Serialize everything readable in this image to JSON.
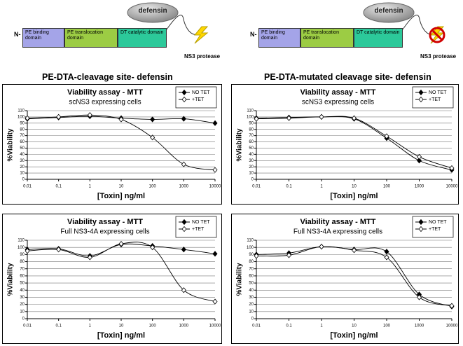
{
  "diagrams": [
    {
      "n_label": "N-",
      "domains": [
        "PE binding domain",
        "PE translocation domain",
        "DT catalytic domain"
      ],
      "defensin": "defensin",
      "protease": "NS3 protease",
      "caption": "PE-DTA-cleavage site- defensin"
    },
    {
      "n_label": "N-",
      "domains": [
        "PE binding domain",
        "PE translocation domain",
        "DT catalytic domain"
      ],
      "defensin": "defensin",
      "protease": "NS3 protease",
      "caption": "PE-DTA-mutated cleavage site- defensin"
    }
  ],
  "chart_data": [
    {
      "type": "line",
      "title": "Viability assay - MTT",
      "subtitle": "scNS3 expressing cells",
      "x_label": "[Toxin] ng/ml",
      "y_label": "%Viability",
      "x": [
        0.01,
        0.1,
        1,
        10,
        100,
        1000,
        10000
      ],
      "xscale": "log",
      "xlim": [
        0.01,
        10000
      ],
      "xticks": [
        0.01,
        0.1,
        1,
        10,
        100,
        1000,
        10000
      ],
      "ylim": [
        0,
        110
      ],
      "yticks": [
        0,
        10,
        20,
        30,
        40,
        50,
        60,
        70,
        80,
        90,
        100,
        110
      ],
      "grid": true,
      "legend": "upper right",
      "series": [
        {
          "name": "NO TET",
          "color": "#000000",
          "marker_fill": "#000000",
          "values": [
            97,
            99,
            101,
            98,
            96,
            97,
            90
          ]
        },
        {
          "name": "+TET",
          "color": "#000000",
          "marker_fill": "#ffffff",
          "values": [
            98,
            100,
            103,
            96,
            67,
            24,
            15
          ]
        }
      ]
    },
    {
      "type": "line",
      "title": "Viability assay - MTT",
      "subtitle": "scNS3 expressing cells",
      "x_label": "[Toxin] ng/ml",
      "y_label": "%Viability",
      "x": [
        0.01,
        0.1,
        1,
        10,
        100,
        1000,
        10000
      ],
      "xscale": "log",
      "xlim": [
        0.01,
        10000
      ],
      "xticks": [
        0.01,
        0.1,
        1,
        10,
        100,
        1000,
        10000
      ],
      "ylim": [
        0,
        110
      ],
      "yticks": [
        0,
        10,
        20,
        30,
        40,
        50,
        60,
        70,
        80,
        90,
        100,
        110
      ],
      "grid": true,
      "legend": "upper right",
      "series": [
        {
          "name": "NO TET",
          "color": "#000000",
          "marker_fill": "#000000",
          "values": [
            98,
            99,
            100,
            97,
            66,
            30,
            15
          ]
        },
        {
          "name": "+TET",
          "color": "#000000",
          "marker_fill": "#ffffff",
          "values": [
            97,
            98,
            100,
            98,
            69,
            36,
            18
          ]
        }
      ]
    },
    {
      "type": "line",
      "title": "Viability assay - MTT",
      "subtitle": "Full NS3-4A expressing cells",
      "x_label": "[Toxin] ng/ml",
      "y_label": "%Viability",
      "x": [
        0.01,
        0.1,
        1,
        10,
        100,
        1000,
        10000
      ],
      "xscale": "log",
      "xlim": [
        0.01,
        10000
      ],
      "xticks": [
        0.01,
        0.1,
        1,
        10,
        100,
        1000,
        10000
      ],
      "ylim": [
        0,
        110
      ],
      "yticks": [
        0,
        10,
        20,
        30,
        40,
        50,
        60,
        70,
        80,
        90,
        100,
        110
      ],
      "grid": true,
      "legend": "upper right",
      "series": [
        {
          "name": "NO TET",
          "color": "#000000",
          "marker_fill": "#000000",
          "values": [
            97,
            98,
            88,
            104,
            102,
            97,
            91
          ]
        },
        {
          "name": "+TET",
          "color": "#000000",
          "marker_fill": "#ffffff",
          "values": [
            95,
            97,
            86,
            105,
            100,
            40,
            24
          ]
        }
      ]
    },
    {
      "type": "line",
      "title": "Viability assay - MTT",
      "subtitle": "Full NS3-4A expressing cells",
      "x_label": "[Toxin] ng/ml",
      "y_label": "%Viability",
      "x": [
        0.01,
        0.1,
        1,
        10,
        100,
        1000,
        10000
      ],
      "xscale": "log",
      "xlim": [
        0.01,
        10000
      ],
      "xticks": [
        0.01,
        0.1,
        1,
        10,
        100,
        1000,
        10000
      ],
      "ylim": [
        0,
        110
      ],
      "yticks": [
        0,
        10,
        20,
        30,
        40,
        50,
        60,
        70,
        80,
        90,
        100,
        110
      ],
      "grid": true,
      "legend": "upper right",
      "series": [
        {
          "name": "NO TET",
          "color": "#000000",
          "marker_fill": "#000000",
          "values": [
            90,
            92,
            101,
            97,
            94,
            34,
            17
          ]
        },
        {
          "name": "+TET",
          "color": "#000000",
          "marker_fill": "#ffffff",
          "values": [
            88,
            89,
            101,
            96,
            86,
            30,
            18
          ]
        }
      ]
    }
  ]
}
